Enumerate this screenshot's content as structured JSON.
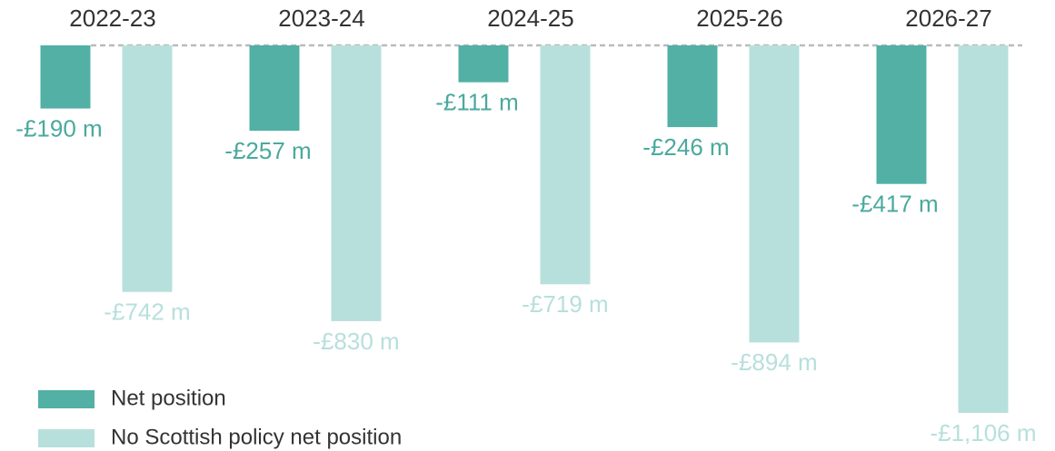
{
  "chart_data": {
    "type": "bar",
    "categories": [
      "2022-23",
      "2023-24",
      "2024-25",
      "2025-26",
      "2026-27"
    ],
    "series": [
      {
        "name": "Net position",
        "color": "#52b0a5",
        "values": [
          -190,
          -257,
          -111,
          -246,
          -417
        ],
        "value_labels": [
          "-£190 m",
          "-£257 m",
          "-£111 m",
          "-£246 m",
          "-£417 m"
        ]
      },
      {
        "name": "No Scottish policy net position",
        "color": "#b7e0dc",
        "values": [
          -742,
          -830,
          -719,
          -894,
          -1106
        ],
        "value_labels": [
          "-£742 m",
          "-£830 m",
          "-£719 m",
          "-£894 m",
          "-£1,106 m"
        ]
      }
    ]
  }
}
